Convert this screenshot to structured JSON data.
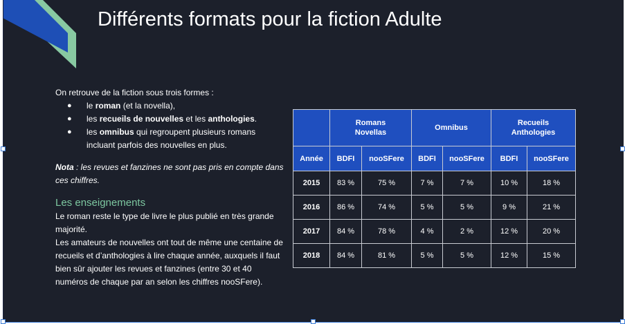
{
  "slide": {
    "title": "Différents formats pour la fiction Adulte",
    "colors": {
      "background": "#1c202b",
      "header_blue": "#1f4fbf",
      "accent_green": "#7dc7a0",
      "deco_blue": "#1e4fb6"
    },
    "intro": "On retrouve de la fiction sous trois formes :",
    "bullets": [
      {
        "pre": "le ",
        "bold": "roman",
        "post": " (et la novella),"
      },
      {
        "pre": "les ",
        "bold": "recueils de nouvelles",
        "mid": " et les ",
        "bold2": "anthologies",
        "post": "."
      },
      {
        "pre": "les ",
        "bold": "omnibus",
        "post": " qui regroupent plusieurs romans incluant parfois des nouvelles en plus."
      }
    ],
    "nota": {
      "label": "Nota",
      "text": " : les revues et fanzines ne sont pas pris en compte dans ces chiffres."
    },
    "section_title": "Les enseignements",
    "paragraphs": [
      "Le roman reste le type de livre le plus publié en très grande majorité.",
      "Les amateurs de nouvelles ont tout de même une centaine de recueils et d’anthologies à lire chaque année, auxquels il faut bien sûr ajouter les revues et fanzines (entre 30 et 40 numéros de chaque par an selon les chiffres nooSFere)."
    ]
  },
  "table": {
    "groups": [
      "Romans Novellas",
      "Omnibus",
      "Recueils Anthologies"
    ],
    "year_header": "Année",
    "sub_headers": [
      "BDFI",
      "nooSFere",
      "BDFI",
      "nooSFere",
      "BDFI",
      "nooSFere"
    ],
    "rows": [
      {
        "year": "2015",
        "values": [
          "83 %",
          "75 %",
          "7 %",
          "7 %",
          "10 %",
          "18 %"
        ]
      },
      {
        "year": "2016",
        "values": [
          "86 %",
          "74 %",
          "5 %",
          "5 %",
          "9 %",
          "21 %"
        ]
      },
      {
        "year": "2017",
        "values": [
          "84 %",
          "78 %",
          "4 %",
          "2 %",
          "12 %",
          "20 %"
        ]
      },
      {
        "year": "2018",
        "values": [
          "84 %",
          "81 %",
          "5 %",
          "5 %",
          "12 %",
          "15 %"
        ]
      }
    ]
  }
}
